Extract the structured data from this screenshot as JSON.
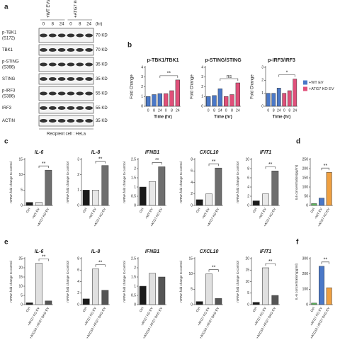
{
  "panel_labels": [
    "a",
    "b",
    "c",
    "d",
    "e",
    "f"
  ],
  "blot": {
    "groups": [
      "+WT EVs",
      "+ATG7 KO EVs"
    ],
    "times": [
      "0",
      "8",
      "24",
      "0",
      "8",
      "24"
    ],
    "unit": "(hr)",
    "rows": [
      {
        "name": "p-TBK1",
        "site": "(S172)",
        "size": "70 KD"
      },
      {
        "name": "TBK1",
        "size": "70 KD"
      },
      {
        "name": "p-STING",
        "site": "(S366)",
        "size": "35 KD"
      },
      {
        "name": "STING",
        "size": "35 KD"
      },
      {
        "name": "p-IRF3",
        "site": "(S386)",
        "size": "55 KD"
      },
      {
        "name": "IRF3",
        "size": "55 KD"
      },
      {
        "name": "ACTIN",
        "size": "35 KD"
      }
    ],
    "caption": "Recipient cell : HeLa"
  },
  "chart_data": [
    {
      "type": "bar",
      "title": "p-TBK1/TBK1",
      "ylabel": "Fold Change",
      "xlabel": "Time (hr)",
      "categories": [
        "0",
        "8",
        "24",
        "0",
        "8",
        "24"
      ],
      "values": [
        1,
        1.2,
        1.3,
        1.3,
        1.6,
        2.7
      ],
      "colors": [
        "#4a78c8",
        "#4a78c8",
        "#4a78c8",
        "#e0507a",
        "#e0507a",
        "#e0507a"
      ],
      "ylim": [
        0,
        4
      ],
      "yticks": [
        0,
        1,
        2,
        3,
        4
      ],
      "significance": "**"
    },
    {
      "type": "bar",
      "title": "p-STING/STING",
      "ylabel": "Fold Change",
      "xlabel": "Time (hr)",
      "categories": [
        "0",
        "8",
        "24",
        "0",
        "8",
        "24"
      ],
      "values": [
        1,
        1.1,
        1.8,
        1,
        1.2,
        2.4
      ],
      "colors": [
        "#4a78c8",
        "#4a78c8",
        "#4a78c8",
        "#e0507a",
        "#e0507a",
        "#e0507a"
      ],
      "ylim": [
        0,
        4
      ],
      "yticks": [
        0,
        1,
        2,
        3,
        4
      ],
      "significance": "ns"
    },
    {
      "type": "bar",
      "title": "p-IRF3/IRF3",
      "ylabel": "Fold Change",
      "xlabel": "Time (hr)",
      "categories": [
        "0",
        "8",
        "24",
        "0",
        "8",
        "24"
      ],
      "values": [
        1,
        1,
        1.4,
        1,
        1.2,
        2.1
      ],
      "colors": [
        "#4a78c8",
        "#4a78c8",
        "#4a78c8",
        "#e0507a",
        "#e0507a",
        "#e0507a"
      ],
      "ylim": [
        0,
        3
      ],
      "yticks": [
        0,
        1,
        2,
        3
      ],
      "significance": "*",
      "legend": [
        {
          "name": "+WT EV",
          "color": "#4a78c8"
        },
        {
          "name": "+ATG7 KO EV",
          "color": "#e0507a"
        }
      ]
    },
    {
      "type": "bar",
      "title": "IL-6",
      "ylabel": "mRNA fold change to control",
      "categories": [
        "Ctrl",
        "+WT EV",
        "+ATG7 KO EV"
      ],
      "values": [
        1,
        1,
        11.5
      ],
      "colors": [
        "#1a1a1a",
        "#e8e8e8",
        "#6e6e6e"
      ],
      "ylim": [
        0,
        15
      ],
      "yticks": [
        0,
        5,
        10,
        15
      ],
      "significance": "**"
    },
    {
      "type": "bar",
      "title": "IL-8",
      "ylabel": "mRNA fold change to control",
      "categories": [
        "Ctrl",
        "+WT EV",
        "+ATG7 KO EV"
      ],
      "values": [
        1,
        1,
        2.6
      ],
      "colors": [
        "#1a1a1a",
        "#e8e8e8",
        "#6e6e6e"
      ],
      "ylim": [
        0,
        3
      ],
      "yticks": [
        0,
        1,
        2,
        3
      ],
      "significance": "**"
    },
    {
      "type": "bar",
      "title": "IFNB1",
      "ylabel": "mRNA fold change to control",
      "categories": [
        "Ctrl",
        "+WT EV",
        "+ATG7 KO EV"
      ],
      "values": [
        1,
        1.3,
        2.1
      ],
      "colors": [
        "#1a1a1a",
        "#e8e8e8",
        "#6e6e6e"
      ],
      "ylim": [
        0,
        2.5
      ],
      "yticks": [
        0,
        0.5,
        1,
        1.5,
        2,
        2.5
      ],
      "significance": "**"
    },
    {
      "type": "bar",
      "title": "CXCL10",
      "ylabel": "mRNA fold change to control",
      "categories": [
        "Ctrl",
        "+WT EV",
        "+ATG7 KO EV"
      ],
      "values": [
        1,
        2,
        6.5
      ],
      "colors": [
        "#1a1a1a",
        "#e8e8e8",
        "#6e6e6e"
      ],
      "ylim": [
        0,
        8
      ],
      "yticks": [
        0,
        2,
        4,
        6,
        8
      ],
      "significance": "**"
    },
    {
      "type": "bar",
      "title": "IFIT1",
      "ylabel": "mRNA fold change to control",
      "categories": [
        "Ctrl",
        "+WT EV",
        "+ATG7 KO EV"
      ],
      "values": [
        1,
        2.5,
        7.5
      ],
      "colors": [
        "#1a1a1a",
        "#e8e8e8",
        "#6e6e6e"
      ],
      "ylim": [
        0,
        10
      ],
      "yticks": [
        0,
        2,
        4,
        6,
        8,
        10
      ],
      "significance": "**"
    },
    {
      "type": "bar",
      "ylabel": "IL6 concentration(pg/ml)",
      "categories": [
        "Ctrl",
        "+WT EV",
        "+ATG7 KO EV"
      ],
      "values": [
        10,
        40,
        180
      ],
      "colors": [
        "#5cb85c",
        "#4a78c8",
        "#f0a040"
      ],
      "ylim": [
        0,
        250
      ],
      "yticks": [
        0,
        50,
        100,
        150,
        200,
        250
      ],
      "significance": "**"
    },
    {
      "type": "bar",
      "title": "IL-6",
      "ylabel": "mRNA fold change to control",
      "categories": [
        "Ctrl",
        "+ATG7 KO EV",
        "+ATG16 / ATG7 DKO EV"
      ],
      "values": [
        1,
        22.5,
        2
      ],
      "colors": [
        "#1a1a1a",
        "#e0e0e0",
        "#555555"
      ],
      "ylim": [
        0,
        25
      ],
      "yticks": [
        0,
        5,
        10,
        15,
        20,
        25
      ],
      "significance": "**"
    },
    {
      "type": "bar",
      "title": "IL-8",
      "ylabel": "mRNA fold change to control",
      "categories": [
        "Ctrl",
        "+ATG7 KO EV",
        "+ATG16 / ATG7 DKO EV"
      ],
      "values": [
        1,
        6.2,
        2.5
      ],
      "colors": [
        "#1a1a1a",
        "#e0e0e0",
        "#555555"
      ],
      "ylim": [
        0,
        8
      ],
      "yticks": [
        0,
        2,
        4,
        6,
        8
      ],
      "significance": "**"
    },
    {
      "type": "bar",
      "title": "IFNB1",
      "ylabel": "mRNA fold change to control",
      "categories": [
        "Ctrl",
        "+ATG7 KO EV",
        "+ATG16 / ATG7 DKO EV"
      ],
      "values": [
        1,
        1.7,
        1.5
      ],
      "colors": [
        "#1a1a1a",
        "#e0e0e0",
        "#555555"
      ],
      "ylim": [
        0,
        2.5
      ],
      "yticks": [
        0,
        0.5,
        1,
        1.5,
        2,
        2.5
      ]
    },
    {
      "type": "bar",
      "title": "CXCL10",
      "ylabel": "mRNA fold change to control",
      "categories": [
        "Ctrl",
        "+ATG7 KO EV",
        "+ATG16 / ATG7 DKO EV"
      ],
      "values": [
        1,
        10,
        2
      ],
      "colors": [
        "#1a1a1a",
        "#e0e0e0",
        "#555555"
      ],
      "ylim": [
        0,
        15
      ],
      "yticks": [
        0,
        5,
        10,
        15
      ],
      "significance": "**"
    },
    {
      "type": "bar",
      "title": "IFIT1",
      "ylabel": "mRNA fold change to control",
      "categories": [
        "Ctrl",
        "+ATG7 KO EV",
        "+ATG16 / ATG7 DKO EV"
      ],
      "values": [
        1,
        16,
        4
      ],
      "colors": [
        "#1a1a1a",
        "#e0e0e0",
        "#555555"
      ],
      "ylim": [
        0,
        20
      ],
      "yticks": [
        0,
        5,
        10,
        15,
        20
      ],
      "significance": "**"
    },
    {
      "type": "bar",
      "ylabel": "IL-6 concentration(pg/ml)",
      "categories": [
        "Ctrl",
        "+ATG7 KO EV",
        "+ATG16 / ATG7 DKO EV"
      ],
      "values": [
        10,
        250,
        110
      ],
      "colors": [
        "#5cb85c",
        "#4a78c8",
        "#f0a040"
      ],
      "ylim": [
        0,
        300
      ],
      "yticks": [
        0,
        100,
        200,
        300
      ],
      "significance": "**"
    }
  ]
}
